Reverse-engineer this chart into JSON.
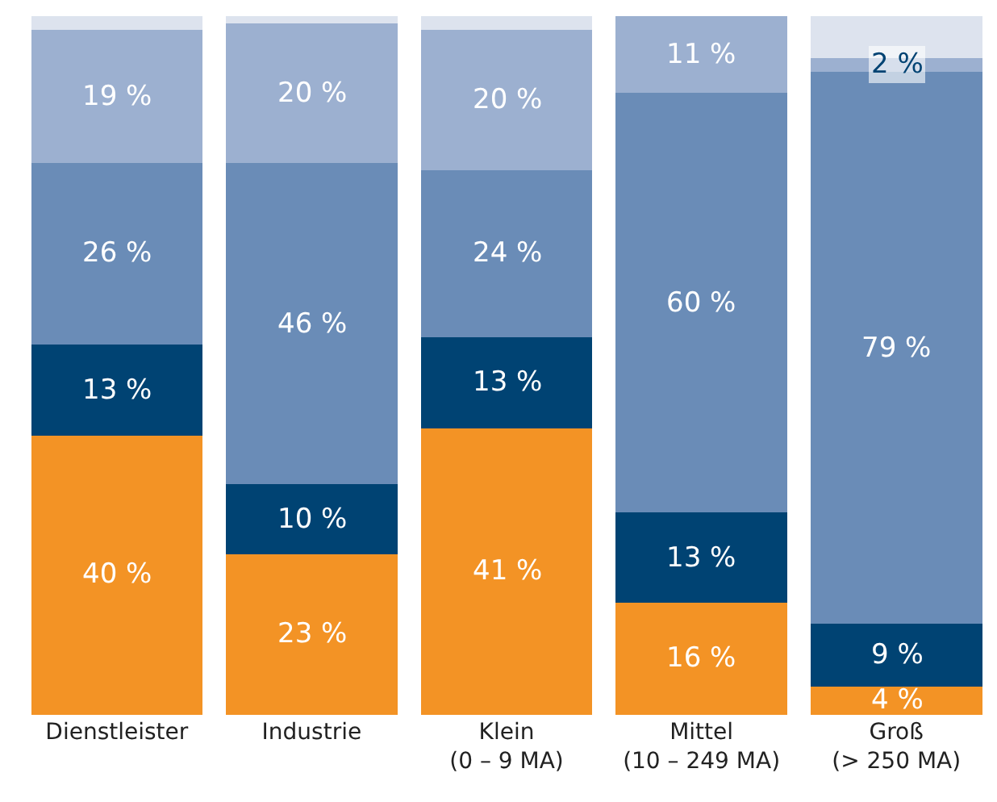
{
  "chart_data": {
    "type": "bar",
    "stacked": true,
    "categories": [
      "Dienstleister",
      "Industrie",
      "Klein\n(0 – 9 MA)",
      "Mittel\n(10 – 249 MA)",
      "Groß\n(> 250 MA)"
    ],
    "series": [
      {
        "color": "#f39325",
        "values": [
          40,
          23,
          41,
          16,
          4
        ],
        "value_labels": [
          "40 %",
          "23 %",
          "41 %",
          "16 %",
          "4 %"
        ]
      },
      {
        "color": "#004373",
        "values": [
          13,
          10,
          13,
          13,
          9
        ],
        "value_labels": [
          "13 %",
          "10 %",
          "13 %",
          "13 %",
          "9 %"
        ]
      },
      {
        "color": "#6a8cb7",
        "values": [
          26,
          46,
          24,
          60,
          79
        ],
        "value_labels": [
          "26 %",
          "46 %",
          "24 %",
          "60 %",
          "79 %"
        ]
      },
      {
        "color": "#9cb0d0",
        "values": [
          19,
          20,
          20,
          11,
          2
        ],
        "value_labels": [
          "19 %",
          "20 %",
          "20 %",
          "11 %",
          "2 %"
        ]
      },
      {
        "color": "#dde3ee",
        "values": [
          2,
          1,
          2,
          0,
          6
        ],
        "value_labels": [
          null,
          null,
          null,
          null,
          null
        ]
      }
    ],
    "ylim": [
      0,
      100
    ],
    "tick_labels": "x",
    "legend": false
  }
}
